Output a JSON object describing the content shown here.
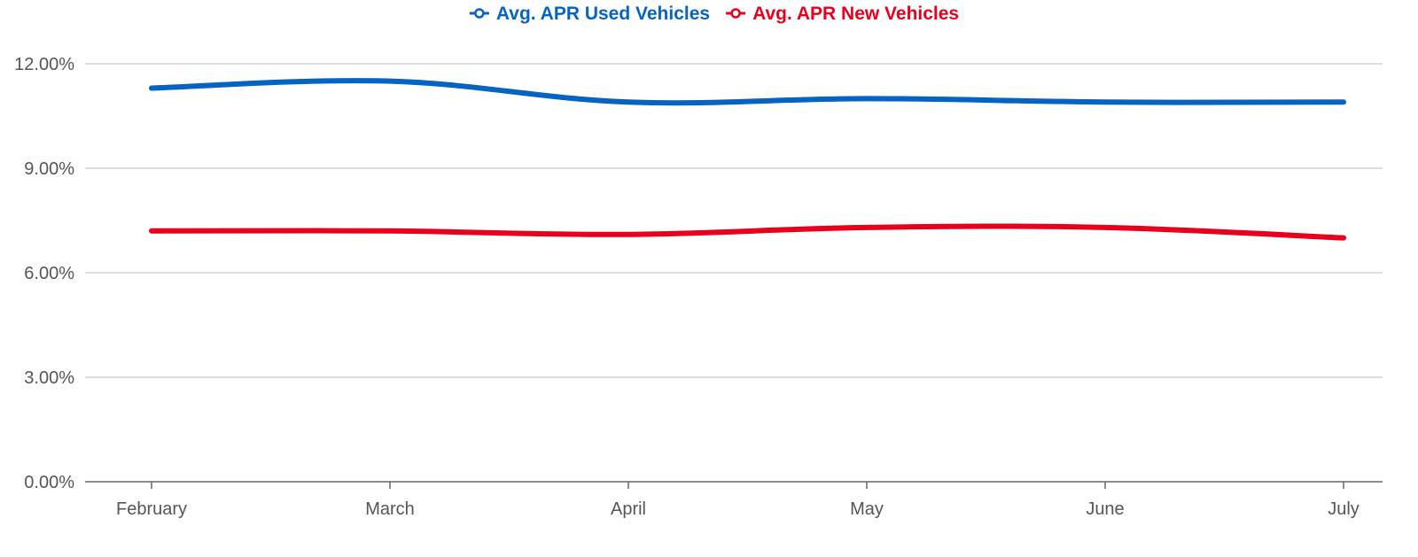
{
  "chart_data": {
    "type": "line",
    "categories": [
      "February",
      "March",
      "April",
      "May",
      "June",
      "July"
    ],
    "series": [
      {
        "name": "Avg. APR Used Vehicles",
        "color": "#0563c1",
        "values": [
          11.3,
          11.5,
          10.9,
          11.0,
          10.9,
          10.9
        ]
      },
      {
        "name": "Avg. APR New Vehicles",
        "color": "#e8001c",
        "values": [
          7.2,
          7.2,
          7.1,
          7.3,
          7.3,
          7.0
        ]
      }
    ],
    "ylim": [
      0,
      12
    ],
    "yticks": [
      0,
      3,
      6,
      9,
      12
    ],
    "ytick_labels": [
      "0.00%",
      "3.00%",
      "6.00%",
      "9.00%",
      "12.00%"
    ],
    "grid": true,
    "legend": "top-center",
    "smooth": true
  }
}
